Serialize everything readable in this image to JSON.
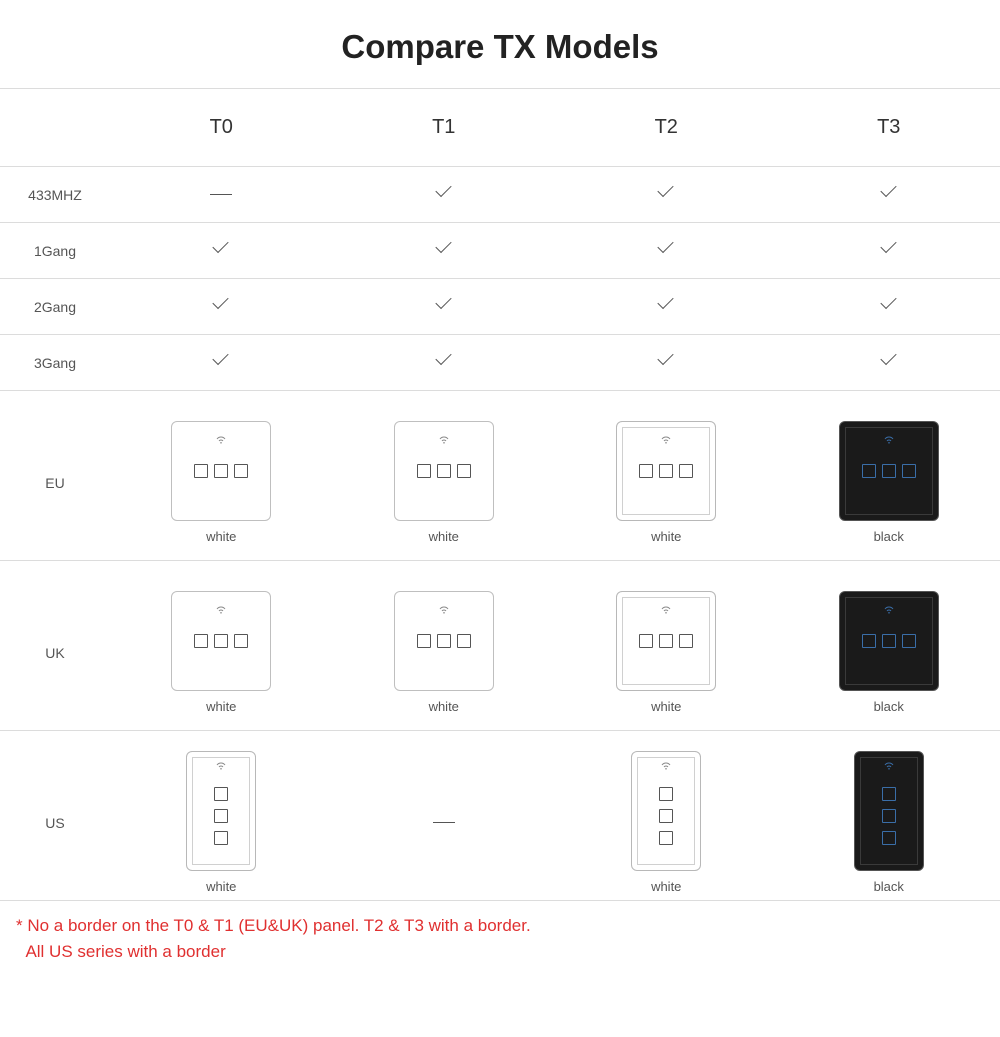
{
  "title": "Compare TX Models",
  "columns": [
    "T0",
    "T1",
    "T2",
    "T3"
  ],
  "features": {
    "row1_label": "433MHZ",
    "row2_label": "1Gang",
    "row3_label": "2Gang",
    "row4_label": "3Gang",
    "matrix": {
      "433MHZ": [
        "dash",
        "check",
        "check",
        "check"
      ],
      "1Gang": [
        "check",
        "check",
        "check",
        "check"
      ],
      "2Gang": [
        "check",
        "check",
        "check",
        "check"
      ],
      "3Gang": [
        "check",
        "check",
        "check",
        "check"
      ]
    }
  },
  "regions": {
    "eu_label": "EU",
    "uk_label": "UK",
    "us_label": "US"
  },
  "panels": {
    "eu": [
      {
        "shape": "sq",
        "color": "white",
        "border": "noborder",
        "label": "white"
      },
      {
        "shape": "sq",
        "color": "white",
        "border": "noborder",
        "label": "white"
      },
      {
        "shape": "sq",
        "color": "white",
        "border": "withborder",
        "label": "white"
      },
      {
        "shape": "sq",
        "color": "black",
        "border": "withborder",
        "label": "black"
      }
    ],
    "uk": [
      {
        "shape": "sq",
        "color": "white",
        "border": "noborder",
        "label": "white"
      },
      {
        "shape": "sq",
        "color": "white",
        "border": "noborder",
        "label": "white"
      },
      {
        "shape": "sq",
        "color": "white",
        "border": "withborder",
        "label": "white"
      },
      {
        "shape": "sq",
        "color": "black",
        "border": "withborder",
        "label": "black"
      }
    ],
    "us": [
      {
        "shape": "tall",
        "color": "white",
        "border": "withborder",
        "label": "white"
      },
      {
        "shape": "dash"
      },
      {
        "shape": "tall",
        "color": "white",
        "border": "withborder",
        "label": "white"
      },
      {
        "shape": "tall",
        "color": "black",
        "border": "withborder",
        "label": "black"
      }
    ]
  },
  "panel_buttons": 3,
  "footnote_line1": "* No a border on the T0 & T1 (EU&UK) panel. T2 & T3 with a border.",
  "footnote_line2": "  All US series with a border",
  "colors": {
    "title": "#222222",
    "text": "#555555",
    "border": "#dcdcdc",
    "footnote": "#e03030",
    "panel_white": "#ffffff",
    "panel_black": "#1a1a1a",
    "btn_border_white": "#555555",
    "btn_border_black": "#3a6ea8"
  }
}
